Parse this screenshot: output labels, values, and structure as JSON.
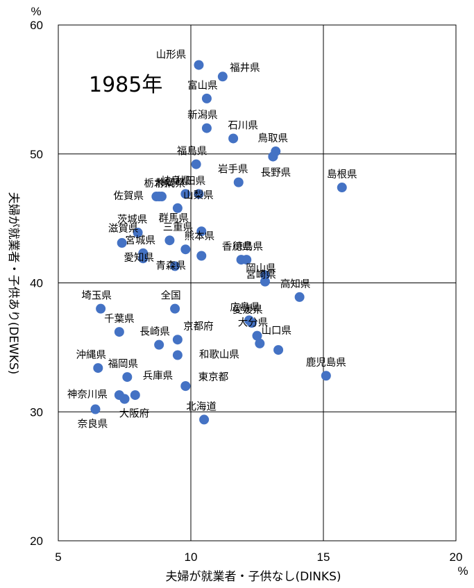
{
  "chart_data": {
    "type": "scatter",
    "title": "1985年",
    "xlabel": "夫婦が就業者・子供なし(DINKS)",
    "ylabel": "夫婦が就業者・子供あり(DEWKS)",
    "x_unit": "%",
    "y_unit": "%",
    "xlim": [
      5,
      20
    ],
    "ylim": [
      20,
      60
    ],
    "xticks": [
      "5",
      "10",
      "15",
      "20"
    ],
    "yticks": [
      "20",
      "30",
      "40",
      "50",
      "60"
    ],
    "grid": true,
    "marker_color": "#4472C4",
    "points": [
      {
        "label": "山形県",
        "x": 10.3,
        "y": 56.9
      },
      {
        "label": "福井県",
        "x": 11.2,
        "y": 56.0
      },
      {
        "label": "富山県",
        "x": 10.6,
        "y": 54.3
      },
      {
        "label": "新潟県",
        "x": 10.6,
        "y": 52.0
      },
      {
        "label": "石川県",
        "x": 11.6,
        "y": 51.2
      },
      {
        "label": "鳥取県",
        "x": 13.2,
        "y": 50.2
      },
      {
        "label": "",
        "x": 13.1,
        "y": 49.8
      },
      {
        "label": "福島県",
        "x": 10.2,
        "y": 49.2
      },
      {
        "label": "岩手県",
        "x": 11.8,
        "y": 47.8
      },
      {
        "label": "長野県",
        "x": 13.1,
        "y": 49.8
      },
      {
        "label": "島根県",
        "x": 15.7,
        "y": 47.4
      },
      {
        "label": "岐阜県",
        "x": 9.8,
        "y": 46.9
      },
      {
        "label": "秋田県",
        "x": 10.3,
        "y": 46.9
      },
      {
        "label": "栃木県",
        "x": 8.8,
        "y": 46.7
      },
      {
        "label": "静岡県",
        "x": 8.7,
        "y": 46.7
      },
      {
        "label": "佐賀県",
        "x": 8.9,
        "y": 46.7
      },
      {
        "label": "山梨県",
        "x": 9.5,
        "y": 45.8
      },
      {
        "label": "茨城県",
        "x": 8.0,
        "y": 43.9
      },
      {
        "label": "群馬県",
        "x": 10.4,
        "y": 44.0
      },
      {
        "label": "滋賀県",
        "x": 7.4,
        "y": 43.1
      },
      {
        "label": "三重県",
        "x": 9.2,
        "y": 43.3
      },
      {
        "label": "熊本県",
        "x": 9.8,
        "y": 42.6
      },
      {
        "label": "宮城県",
        "x": 8.2,
        "y": 42.3
      },
      {
        "label": "愛知県",
        "x": 8.2,
        "y": 41.9
      },
      {
        "label": "青森県",
        "x": 9.4,
        "y": 41.3
      },
      {
        "label": "",
        "x": 10.4,
        "y": 42.1
      },
      {
        "label": "香川県",
        "x": 11.9,
        "y": 41.8
      },
      {
        "label": "徳島県",
        "x": 12.1,
        "y": 41.8
      },
      {
        "label": "宮崎県",
        "x": 12.8,
        "y": 40.6
      },
      {
        "label": "岡山県",
        "x": 12.8,
        "y": 40.1
      },
      {
        "label": "高知県",
        "x": 14.1,
        "y": 38.9
      },
      {
        "label": "埼玉県",
        "x": 6.6,
        "y": 38.0
      },
      {
        "label": "全国",
        "x": 9.4,
        "y": 38.0
      },
      {
        "label": "広島県",
        "x": 12.2,
        "y": 37.1
      },
      {
        "label": "愛媛県",
        "x": 12.3,
        "y": 36.9
      },
      {
        "label": "千葉県",
        "x": 7.3,
        "y": 36.2
      },
      {
        "label": "京都府",
        "x": 9.5,
        "y": 35.6
      },
      {
        "label": "大分県",
        "x": 12.5,
        "y": 35.9
      },
      {
        "label": "山口県",
        "x": 12.6,
        "y": 35.3
      },
      {
        "label": "長崎県",
        "x": 8.8,
        "y": 35.2
      },
      {
        "label": "",
        "x": 13.3,
        "y": 34.8
      },
      {
        "label": "和歌山県",
        "x": 9.5,
        "y": 34.4
      },
      {
        "label": "沖縄県",
        "x": 6.5,
        "y": 33.4
      },
      {
        "label": "鹿児島県",
        "x": 15.1,
        "y": 32.8
      },
      {
        "label": "福岡県",
        "x": 7.6,
        "y": 32.7
      },
      {
        "label": "兵庫県",
        "x": 9.8,
        "y": 32.0
      },
      {
        "label": "東京都",
        "x": 9.8,
        "y": 32.0
      },
      {
        "label": "神奈川県",
        "x": 7.3,
        "y": 31.3
      },
      {
        "label": "",
        "x": 7.5,
        "y": 31.0
      },
      {
        "label": "",
        "x": 7.9,
        "y": 31.3
      },
      {
        "label": "奈良県",
        "x": 6.4,
        "y": 30.2
      },
      {
        "label": "大阪府",
        "x": 7.5,
        "y": 31.0
      },
      {
        "label": "北海道",
        "x": 10.5,
        "y": 29.4
      }
    ]
  }
}
